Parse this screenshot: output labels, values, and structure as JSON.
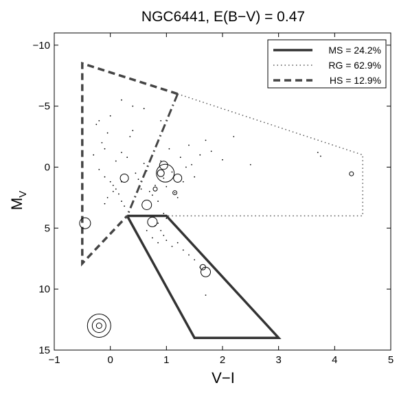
{
  "chart_data": {
    "type": "scatter",
    "title": "NGC6441,  E(B−V) = 0.47",
    "xlabel": "V−I",
    "ylabel_main": "M",
    "ylabel_sub": "V",
    "xlim": [
      -1,
      5
    ],
    "ylim": [
      -11,
      15
    ],
    "y_inverted": true,
    "grid": false,
    "x_ticks": [
      -1,
      0,
      1,
      2,
      3,
      4,
      5
    ],
    "x_tick_labels": [
      "−1",
      "0",
      "1",
      "2",
      "3",
      "4",
      "5"
    ],
    "y_ticks": [
      -10,
      -5,
      0,
      5,
      10,
      15
    ],
    "y_tick_labels": [
      "−10",
      "−5",
      "0",
      "5",
      "10",
      "15"
    ],
    "legend": {
      "placement": "top-right",
      "entries": [
        {
          "label": "MS = 24.2%",
          "style": "solid"
        },
        {
          "label": "RG = 62.9%",
          "style": "dotted"
        },
        {
          "label": "HS = 12.9%",
          "style": "dashed"
        }
      ]
    },
    "regions": [
      {
        "name": "MS",
        "style": "solid",
        "points": [
          [
            0.3,
            4
          ],
          [
            1.0,
            4
          ],
          [
            3.0,
            14
          ],
          [
            1.5,
            14
          ],
          [
            0.3,
            4
          ]
        ]
      },
      {
        "name": "RG",
        "style": "dotted",
        "points": [
          [
            1.2,
            -6
          ],
          [
            4.5,
            -1
          ],
          [
            4.5,
            4
          ],
          [
            1.0,
            4
          ]
        ]
      },
      {
        "name": "HS",
        "style": "dashed",
        "points": [
          [
            1.2,
            -6
          ],
          [
            -0.5,
            -8.5
          ],
          [
            -0.5,
            7.9
          ],
          [
            0.3,
            4
          ]
        ]
      },
      {
        "name": "boundary",
        "style": "dashdot",
        "points": [
          [
            1.2,
            -6
          ],
          [
            0.3,
            4
          ]
        ]
      }
    ],
    "points": [
      [
        -0.2,
        -3.8
      ],
      [
        -0.25,
        -3.5
      ],
      [
        -0.05,
        -2.8
      ],
      [
        0.0,
        -4.2
      ],
      [
        -0.15,
        -2.0
      ],
      [
        -0.1,
        -1.5
      ],
      [
        -0.3,
        -1.0
      ],
      [
        -0.2,
        0.2
      ],
      [
        -0.1,
        0.8
      ],
      [
        0.0,
        1.2
      ],
      [
        0.05,
        1.5
      ],
      [
        0.1,
        1.8
      ],
      [
        0.15,
        2.2
      ],
      [
        -0.05,
        2.5
      ],
      [
        0.2,
        2.8
      ],
      [
        0.25,
        3.2
      ],
      [
        0.1,
        -0.5
      ],
      [
        0.2,
        -1.2
      ],
      [
        0.3,
        -0.8
      ],
      [
        0.35,
        -2.5
      ],
      [
        0.4,
        -3.0
      ],
      [
        0.45,
        0.5
      ],
      [
        0.5,
        1.0
      ],
      [
        0.55,
        1.8
      ],
      [
        0.6,
        -0.3
      ],
      [
        0.65,
        0.3
      ],
      [
        0.7,
        2.0
      ],
      [
        0.75,
        2.3
      ],
      [
        0.8,
        1.5
      ],
      [
        0.85,
        2.8
      ],
      [
        0.9,
        -0.5
      ],
      [
        0.95,
        0.9
      ],
      [
        1.0,
        1.6
      ],
      [
        1.05,
        -1.5
      ],
      [
        1.1,
        0.4
      ],
      [
        1.15,
        2.1
      ],
      [
        1.2,
        2.5
      ],
      [
        1.25,
        -0.8
      ],
      [
        1.3,
        1.2
      ],
      [
        1.35,
        0.0
      ],
      [
        1.4,
        -1.8
      ],
      [
        1.45,
        -0.2
      ],
      [
        1.5,
        0.8
      ],
      [
        1.6,
        -1.0
      ],
      [
        1.7,
        -2.2
      ],
      [
        1.8,
        -1.3
      ],
      [
        2.0,
        -0.6
      ],
      [
        2.2,
        -2.5
      ],
      [
        2.5,
        -0.2
      ],
      [
        3.7,
        -1.2
      ],
      [
        3.75,
        -0.9
      ],
      [
        0.6,
        -4.8
      ],
      [
        0.4,
        -5.0
      ],
      [
        0.2,
        -5.5
      ],
      [
        0.9,
        -3.8
      ],
      [
        0.95,
        3.8
      ],
      [
        1.0,
        4.2
      ],
      [
        0.85,
        4.6
      ],
      [
        0.9,
        5.2
      ],
      [
        0.95,
        5.6
      ],
      [
        1.0,
        6.0
      ],
      [
        1.1,
        6.5
      ],
      [
        1.2,
        6.2
      ],
      [
        1.3,
        6.8
      ],
      [
        1.4,
        7.2
      ],
      [
        1.5,
        7.6
      ],
      [
        1.6,
        8.2
      ],
      [
        1.7,
        10.5
      ],
      [
        0.8,
        4.8
      ],
      [
        0.75,
        5.8
      ],
      [
        0.85,
        6.2
      ],
      [
        0.65,
        5.2
      ],
      [
        -0.1,
        3.0
      ],
      [
        0.05,
        2.0
      ],
      [
        0.2,
        1.2
      ]
    ],
    "circles": [
      {
        "x": 0.25,
        "y": 0.9,
        "r": 6
      },
      {
        "x": 0.9,
        "y": 0.5,
        "r": 5
      },
      {
        "x": 0.95,
        "y": -0.15,
        "r": 6
      },
      {
        "x": 0.98,
        "y": 0.5,
        "r": 13
      },
      {
        "x": 1.2,
        "y": 0.9,
        "r": 6
      },
      {
        "x": 0.8,
        "y": 1.8,
        "r": 3
      },
      {
        "x": 1.15,
        "y": 2.1,
        "r": 3
      },
      {
        "x": 0.65,
        "y": 3.1,
        "r": 7
      },
      {
        "x": 0.75,
        "y": 4.5,
        "r": 7
      },
      {
        "x": -0.45,
        "y": 4.6,
        "r": 8
      },
      {
        "x": 1.65,
        "y": 8.2,
        "r": 4
      },
      {
        "x": 1.7,
        "y": 8.6,
        "r": 7
      },
      {
        "x": 4.3,
        "y": 0.55,
        "r": 3
      }
    ],
    "scale_key": {
      "x": -0.2,
      "y": 13,
      "radii": [
        4,
        10,
        17
      ]
    }
  }
}
